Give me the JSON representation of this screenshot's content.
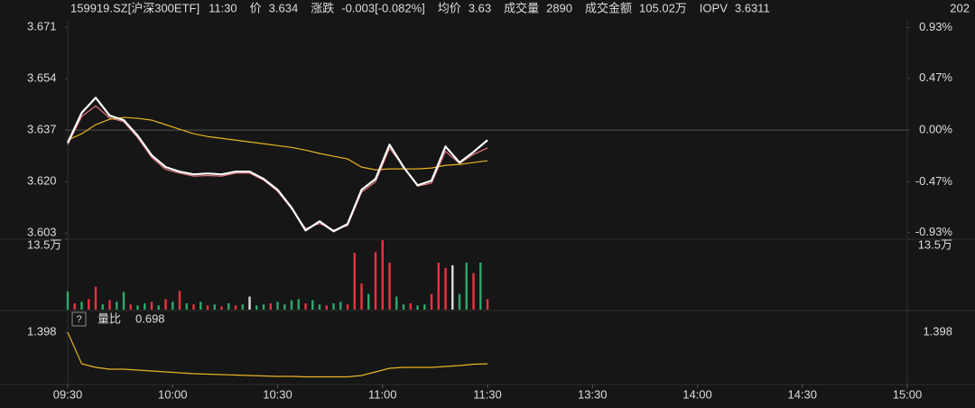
{
  "header": {
    "code": "159919.SZ[沪深300ETF]",
    "time": "11:30",
    "time_color": "#4fc3c8",
    "items": [
      {
        "label": "价",
        "value": "3.634",
        "color": "#2ea86a"
      },
      {
        "label": "涨跌",
        "value": "-0.003[-0.082%]",
        "color": "#2ea86a"
      },
      {
        "label": "均价",
        "value": "3.63",
        "color": "#2ea86a"
      },
      {
        "label": "成交量",
        "value": "2890",
        "color": "#dddddd"
      },
      {
        "label": "成交金额",
        "value": "105.02万",
        "color": "#dddddd"
      },
      {
        "label": "IOPV",
        "value": "3.6311",
        "color": "#e8747c"
      }
    ],
    "right": "202"
  },
  "chart_data": [
    {
      "type": "line",
      "x": [
        0,
        4,
        8,
        12,
        16,
        20,
        24,
        28,
        32,
        36,
        40,
        44,
        48,
        52,
        56,
        60,
        64,
        68,
        72,
        76,
        80,
        84,
        88,
        92,
        96,
        100,
        104,
        108,
        112,
        116,
        120
      ],
      "series": [
        {
          "color": "#e8747c",
          "values": [
            3.6322,
            3.6415,
            3.645,
            3.641,
            3.6398,
            3.6345,
            3.628,
            3.624,
            3.6228,
            3.6218,
            3.622,
            3.6218,
            3.6228,
            3.6228,
            3.6205,
            3.6168,
            3.611,
            3.6045,
            3.6062,
            3.604,
            3.6055,
            3.6165,
            3.62,
            3.631,
            3.625,
            3.6185,
            3.6195,
            3.63,
            3.626,
            3.629,
            3.6311
          ]
        },
        {
          "color": "#e6b422",
          "values": [
            3.6337,
            3.6358,
            3.6388,
            3.6406,
            3.6412,
            3.6409,
            3.6403,
            3.6388,
            3.6373,
            3.6358,
            3.6349,
            3.6343,
            3.6337,
            3.6331,
            3.6325,
            3.6319,
            3.6313,
            3.6304,
            3.6293,
            3.6284,
            3.6275,
            3.6248,
            3.6239,
            3.6242,
            3.6242,
            3.6242,
            3.6245,
            3.6254,
            3.6257,
            3.6263,
            3.6269
          ]
        },
        {
          "color": "#ffffff",
          "values": [
            3.6328,
            3.6427,
            3.6477,
            3.6418,
            3.6403,
            3.6352,
            3.6287,
            3.6248,
            3.6233,
            3.6224,
            3.6227,
            3.6224,
            3.6233,
            3.6233,
            3.6209,
            3.6173,
            3.6114,
            3.6039,
            3.6069,
            3.6036,
            3.606,
            3.6173,
            3.6209,
            3.6322,
            3.6248,
            3.6188,
            3.6203,
            3.6316,
            3.6263,
            3.6298,
            3.6337
          ]
        }
      ],
      "xlim": [
        0,
        240
      ],
      "ylim": [
        3.601,
        3.6734
      ],
      "yticks": [
        3.603,
        {
          "value": 3.62,
          "label": "3.620"
        },
        3.637,
        3.654,
        3.671
      ],
      "y2lim": [
        -0.99,
        1.0
      ],
      "y2ticks": [
        {
          "value": -0.93,
          "label": "-0.93%"
        },
        {
          "value": -0.47,
          "label": "-0.47%"
        },
        {
          "value": 0,
          "label": "0.00%"
        },
        {
          "value": 0.47,
          "label": "0.47%"
        },
        {
          "value": 0.93,
          "label": "0.93%"
        }
      ],
      "ref_line": 3.637,
      "up_color": "#e8333f",
      "down_color": "#2ea86a",
      "flat_color": "#dddddd"
    },
    {
      "type": "bar",
      "x": [
        0,
        2,
        4,
        6,
        8,
        10,
        12,
        14,
        16,
        18,
        20,
        22,
        24,
        26,
        28,
        30,
        32,
        34,
        36,
        38,
        40,
        42,
        44,
        46,
        48,
        50,
        52,
        54,
        56,
        58,
        60,
        62,
        64,
        66,
        68,
        70,
        72,
        74,
        76,
        78,
        80,
        82,
        84,
        86,
        88,
        90,
        92,
        94,
        96,
        98,
        100,
        102,
        104,
        106,
        108,
        110,
        112,
        114,
        116,
        118,
        120
      ],
      "values": [
        3.5,
        1.2,
        1.5,
        2.0,
        4.4,
        1.0,
        1.8,
        1.5,
        3.4,
        1.0,
        0.8,
        1.2,
        1.5,
        0.8,
        2.0,
        1.5,
        3.6,
        1.2,
        1.0,
        1.5,
        0.8,
        1.0,
        0.6,
        1.2,
        0.8,
        1.0,
        2.5,
        0.8,
        1.0,
        1.2,
        1.5,
        1.0,
        1.8,
        2.0,
        1.2,
        1.8,
        1.0,
        0.8,
        1.2,
        1.5,
        1.0,
        10.9,
        5.0,
        3.0,
        11.0,
        13.3,
        9.0,
        2.5,
        1.0,
        1.2,
        0.8,
        1.0,
        3.0,
        9.0,
        8.0,
        8.5,
        3.0,
        9.0,
        7.0,
        9.0,
        2.0
      ],
      "colors": [
        "#2ea86a",
        "#e8333f",
        "#2ea86a",
        "#e8333f",
        "#e8333f",
        "#2ea86a",
        "#e8333f",
        "#2ea86a",
        "#2ea86a",
        "#e8333f",
        "#2ea86a",
        "#2ea86a",
        "#e8333f",
        "#2ea86a",
        "#e8333f",
        "#2ea86a",
        "#e8333f",
        "#2ea86a",
        "#e8333f",
        "#2ea86a",
        "#e8333f",
        "#2ea86a",
        "#e8333f",
        "#2ea86a",
        "#e8333f",
        "#2ea86a",
        "#dddddd",
        "#2ea86a",
        "#2ea86a",
        "#e8333f",
        "#2ea86a",
        "#2ea86a",
        "#2ea86a",
        "#2ea86a",
        "#e8333f",
        "#2ea86a",
        "#2ea86a",
        "#e8333f",
        "#2ea86a",
        "#2ea86a",
        "#e8333f",
        "#e8333f",
        "#e8333f",
        "#2ea86a",
        "#e8333f",
        "#e8333f",
        "#e8333f",
        "#2ea86a",
        "#2ea86a",
        "#e8333f",
        "#2ea86a",
        "#2ea86a",
        "#e8333f",
        "#e8333f",
        "#e8333f",
        "#dddddd",
        "#2ea86a",
        "#2ea86a",
        "#e8333f",
        "#2ea86a",
        "#e8333f"
      ],
      "xlim": [
        0,
        240
      ],
      "ylim": [
        0,
        13.5
      ],
      "yticks": [
        {
          "value": 13.5,
          "label": "13.5万"
        }
      ]
    },
    {
      "type": "line",
      "title": "量比",
      "current": "0.698",
      "current_color": "#e6b422",
      "x": [
        0,
        4,
        8,
        12,
        16,
        20,
        24,
        28,
        32,
        36,
        40,
        44,
        48,
        52,
        56,
        60,
        64,
        68,
        72,
        76,
        80,
        84,
        88,
        92,
        96,
        100,
        104,
        108,
        112,
        116,
        120
      ],
      "series": [
        {
          "color": "#e6b422",
          "values": [
            1.398,
            0.7,
            0.62,
            0.58,
            0.58,
            0.56,
            0.54,
            0.52,
            0.5,
            0.48,
            0.47,
            0.46,
            0.45,
            0.44,
            0.43,
            0.42,
            0.42,
            0.41,
            0.41,
            0.41,
            0.41,
            0.44,
            0.52,
            0.6,
            0.62,
            0.62,
            0.62,
            0.64,
            0.66,
            0.69,
            0.698
          ]
        }
      ],
      "xlim": [
        0,
        240
      ],
      "ylim": [
        0.26,
        1.56
      ],
      "yticks": [
        1.398
      ],
      "xticks": [
        {
          "value": 0,
          "label": "09:30"
        },
        {
          "value": 30,
          "label": "10:00"
        },
        {
          "value": 60,
          "label": "10:30"
        },
        {
          "value": 90,
          "label": "11:00"
        },
        {
          "value": 120,
          "label": "11:30"
        },
        {
          "value": 150,
          "label": "13:30"
        },
        {
          "value": 180,
          "label": "14:00"
        },
        {
          "value": 210,
          "label": "14:30"
        },
        {
          "value": 240,
          "label": "15:00"
        }
      ]
    }
  ]
}
